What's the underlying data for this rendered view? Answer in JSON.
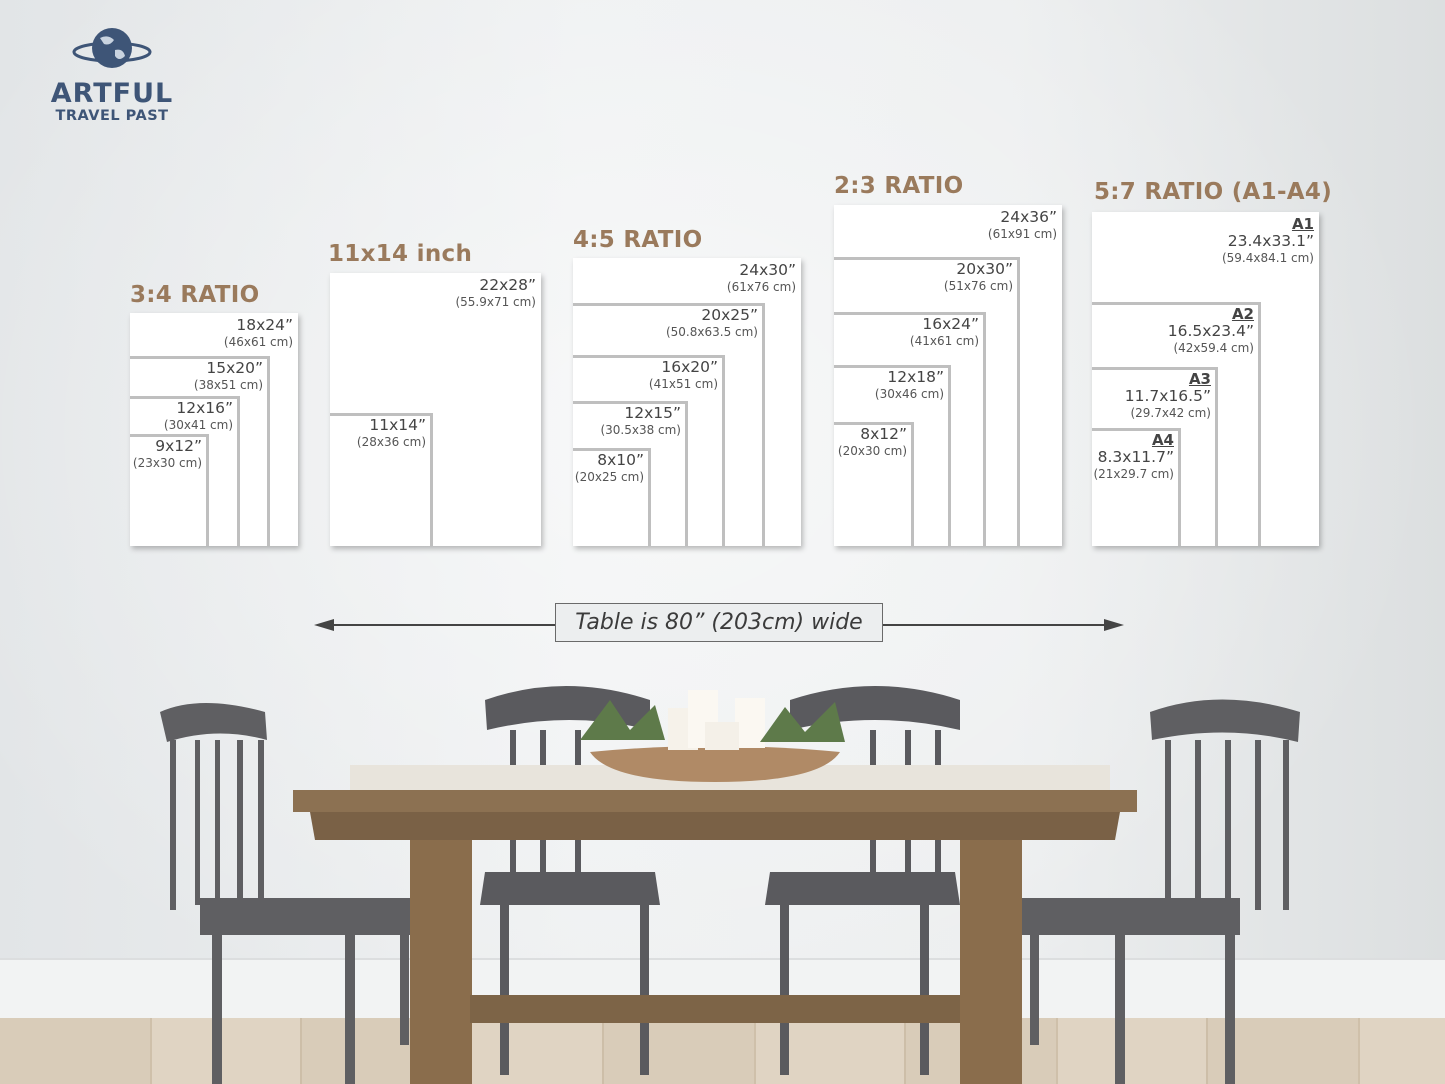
{
  "logo": {
    "line1": "ARTFUL",
    "line2": "TRAVEL PAST",
    "color": "#3e5577",
    "icon": "globe-icon"
  },
  "heading_color": "#9a7a5c",
  "groups": [
    {
      "heading": "3:4 RATIO",
      "sizes": [
        {
          "in": "18x24”",
          "cm": "(46x61 cm)"
        },
        {
          "in": "15x20”",
          "cm": "(38x51 cm)"
        },
        {
          "in": "12x16”",
          "cm": "(30x41 cm)"
        },
        {
          "in": "9x12”",
          "cm": "(23x30 cm)"
        }
      ]
    },
    {
      "heading": "11x14 inch",
      "sizes": [
        {
          "in": "22x28”",
          "cm": "(55.9x71 cm)"
        },
        {
          "in": "11x14”",
          "cm": "(28x36 cm)"
        }
      ]
    },
    {
      "heading": "4:5 RATIO",
      "sizes": [
        {
          "in": "24x30”",
          "cm": "(61x76 cm)"
        },
        {
          "in": "20x25”",
          "cm": "(50.8x63.5 cm)"
        },
        {
          "in": "16x20”",
          "cm": "(41x51 cm)"
        },
        {
          "in": "12x15”",
          "cm": "(30.5x38 cm)"
        },
        {
          "in": "8x10”",
          "cm": "(20x25 cm)"
        }
      ]
    },
    {
      "heading": "2:3 RATIO",
      "sizes": [
        {
          "in": "24x36”",
          "cm": "(61x91 cm)"
        },
        {
          "in": "20x30”",
          "cm": "(51x76 cm)"
        },
        {
          "in": "16x24”",
          "cm": "(41x61 cm)"
        },
        {
          "in": "12x18”",
          "cm": "(30x46 cm)"
        },
        {
          "in": "8x12”",
          "cm": "(20x30 cm)"
        }
      ]
    },
    {
      "heading": "5:7 RATIO (A1-A4)",
      "sizes": [
        {
          "code": "A1",
          "in": "23.4x33.1”",
          "cm": "(59.4x84.1 cm)"
        },
        {
          "code": "A2",
          "in": "16.5x23.4”",
          "cm": "(42x59.4 cm)"
        },
        {
          "code": "A3",
          "in": "11.7x16.5”",
          "cm": "(29.7x42 cm)"
        },
        {
          "code": "A4",
          "in": "8.3x11.7”",
          "cm": "(21x29.7 cm)"
        }
      ]
    }
  ],
  "table_caption": "Table is 80” (203cm) wide"
}
